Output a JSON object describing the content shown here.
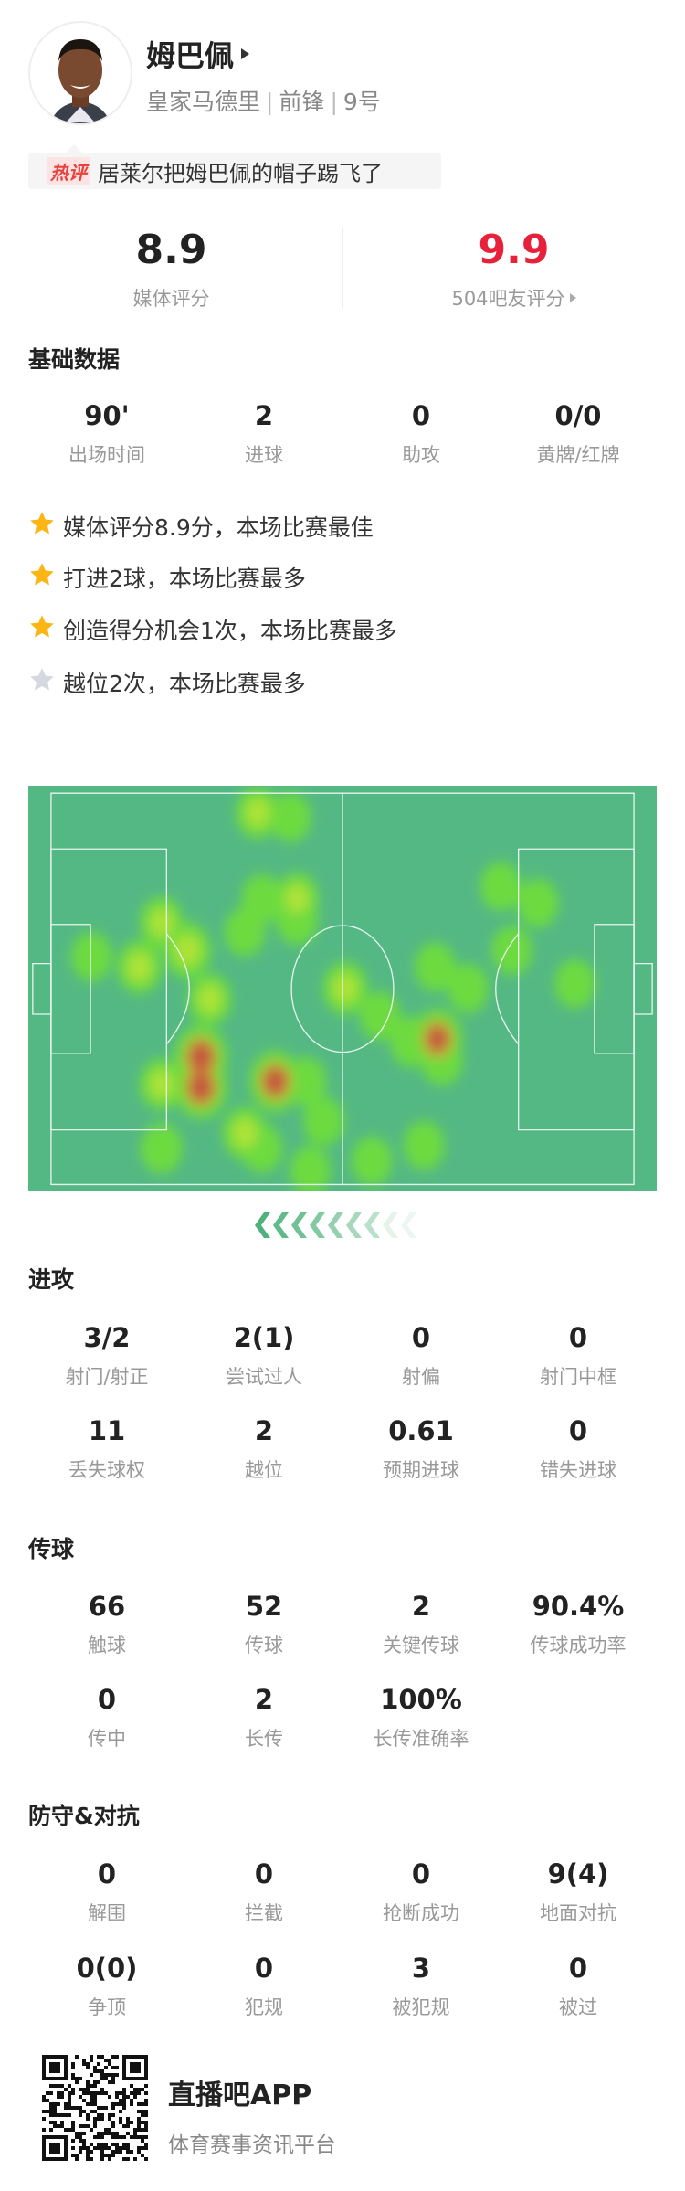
{
  "player": {
    "name": "姆巴佩",
    "team": "皇家马德里",
    "position": "前锋",
    "number": "9号"
  },
  "hot_comment": {
    "tag": "热评",
    "text": "居莱尔把姆巴佩的帽子踢飞了"
  },
  "ratings": {
    "media": {
      "value": "8.9",
      "label": "媒体评分"
    },
    "fans": {
      "value": "9.9",
      "label": "504吧友评分",
      "color": "#e8213a"
    }
  },
  "basic": {
    "title": "基础数据",
    "stats": [
      {
        "value": "90'",
        "label": "出场时间"
      },
      {
        "value": "2",
        "label": "进球"
      },
      {
        "value": "0",
        "label": "助攻"
      },
      {
        "value": "0/0",
        "label": "黄牌/红牌"
      }
    ],
    "highlights": [
      {
        "text": "媒体评分8.9分，本场比赛最佳",
        "star": "gold"
      },
      {
        "text": "打进2球，本场比赛最多",
        "star": "gold"
      },
      {
        "text": "创造得分机会1次，本场比赛最多",
        "star": "gold"
      },
      {
        "text": "越位2次，本场比赛最多",
        "star": "gray"
      }
    ]
  },
  "heatmap": {
    "attack_direction": "left",
    "points": [
      [
        37.2,
        3.4,
        0.6
      ],
      [
        43.2,
        4.2,
        0.5
      ],
      [
        44.3,
        18.3,
        0.6
      ],
      [
        44.3,
        22,
        0.55
      ],
      [
        38.0,
        18.3,
        0.5
      ],
      [
        24.6,
        27.3,
        0.75
      ],
      [
        15.9,
        30.2,
        0.65
      ],
      [
        7.3,
        28.4,
        0.5
      ],
      [
        19.9,
        22.5,
        0.6
      ],
      [
        34.9,
        24.1,
        0.5
      ],
      [
        28.6,
        35.8,
        0.6
      ],
      [
        27.0,
        45.8,
        1.0
      ],
      [
        27.0,
        51.1,
        1.0
      ],
      [
        40.4,
        50.1,
        0.95
      ],
      [
        45.9,
        50.1,
        0.5
      ],
      [
        19.9,
        50.6,
        0.6
      ],
      [
        34.9,
        59.1,
        0.65
      ],
      [
        38.0,
        61.7,
        0.5
      ],
      [
        19.9,
        61.7,
        0.55
      ],
      [
        49.1,
        57.0,
        0.5
      ],
      [
        46.7,
        65.5,
        0.5
      ],
      [
        53.0,
        33.9,
        0.65
      ],
      [
        59.3,
        38.7,
        0.5
      ],
      [
        69.6,
        42.7,
        0.9
      ],
      [
        64.9,
        43.2,
        0.55
      ],
      [
        70.4,
        46.4,
        0.55
      ],
      [
        69.2,
        30.2,
        0.5
      ],
      [
        75.1,
        33.9,
        0.5
      ],
      [
        81.0,
        16.2,
        0.5
      ],
      [
        87.7,
        19.1,
        0.5
      ],
      [
        83.0,
        27.3,
        0.5
      ],
      [
        94.4,
        33.1,
        0.5
      ],
      [
        67.2,
        61.2,
        0.5
      ],
      [
        57.8,
        63.9,
        0.5
      ]
    ]
  },
  "attack": {
    "title": "进攻",
    "rows": [
      [
        {
          "value": "3/2",
          "label": "射门/射正"
        },
        {
          "value": "2(1)",
          "label": "尝试过人"
        },
        {
          "value": "0",
          "label": "射偏"
        },
        {
          "value": "0",
          "label": "射门中框"
        }
      ],
      [
        {
          "value": "11",
          "label": "丢失球权"
        },
        {
          "value": "2",
          "label": "越位"
        },
        {
          "value": "0.61",
          "label": "预期进球"
        },
        {
          "value": "0",
          "label": "错失进球"
        }
      ]
    ]
  },
  "passing": {
    "title": "传球",
    "rows": [
      [
        {
          "value": "66",
          "label": "触球"
        },
        {
          "value": "52",
          "label": "传球"
        },
        {
          "value": "2",
          "label": "关键传球"
        },
        {
          "value": "90.4%",
          "label": "传球成功率"
        }
      ],
      [
        {
          "value": "0",
          "label": "传中"
        },
        {
          "value": "2",
          "label": "长传"
        },
        {
          "value": "100%",
          "label": "长传准确率"
        }
      ]
    ]
  },
  "defense": {
    "title": "防守&对抗",
    "rows": [
      [
        {
          "value": "0",
          "label": "解围"
        },
        {
          "value": "0",
          "label": "拦截"
        },
        {
          "value": "0",
          "label": "抢断成功"
        },
        {
          "value": "9(4)",
          "label": "地面对抗"
        }
      ],
      [
        {
          "value": "0(0)",
          "label": "争顶"
        },
        {
          "value": "0",
          "label": "犯规"
        },
        {
          "value": "3",
          "label": "被犯规"
        },
        {
          "value": "0",
          "label": "被过"
        }
      ]
    ]
  },
  "footer": {
    "app_name": "直播吧APP",
    "slogan": "体育赛事资讯平台"
  },
  "colors": {
    "pitch": "#54b884",
    "star_gold": "#fbb614",
    "star_gray": "#d5d8de"
  }
}
